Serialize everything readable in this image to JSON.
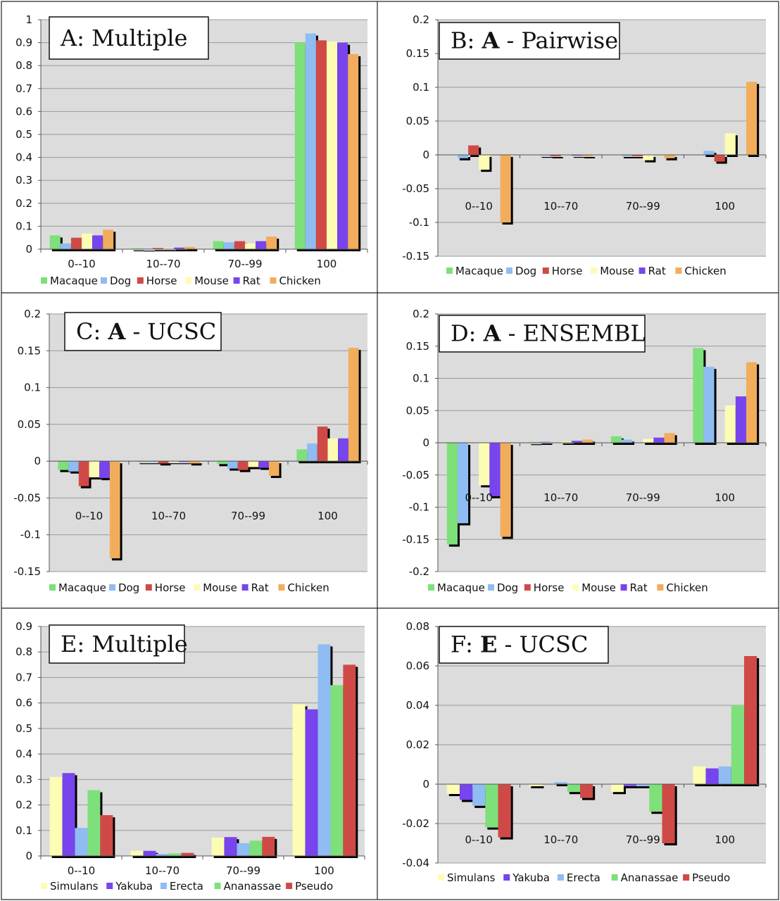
{
  "chart_data": [
    {
      "type": "bar",
      "title_parts": [
        "A: Multiple"
      ],
      "categories": [
        "0--10",
        "10--70",
        "70--99",
        "100"
      ],
      "ylim": [
        0,
        1
      ],
      "yticks": [
        0,
        0.1,
        0.2,
        0.3,
        0.4,
        0.5,
        0.6,
        0.7,
        0.8,
        0.9,
        1
      ],
      "ytick_labels": [
        "0",
        "0.1",
        "0.2",
        "0.3",
        "0.4",
        "0.5",
        "0.6",
        "0.7",
        "0.8",
        "0.9",
        "1"
      ],
      "category_labels_at_bottom": true,
      "grid": true,
      "legend_placement": "bottom",
      "series": [
        {
          "name": "Macaque",
          "color": "#7ee07a",
          "values": [
            0.06,
            0.004,
            0.035,
            0.9
          ]
        },
        {
          "name": "Dog",
          "color": "#8fbcf2",
          "values": [
            0.025,
            0.003,
            0.03,
            0.94
          ]
        },
        {
          "name": "Horse",
          "color": "#cf4a46",
          "values": [
            0.05,
            0.005,
            0.035,
            0.91
          ]
        },
        {
          "name": "Mouse",
          "color": "#fdfcb4",
          "values": [
            0.068,
            0.005,
            0.025,
            0.905
          ]
        },
        {
          "name": "Rat",
          "color": "#7744ee",
          "values": [
            0.06,
            0.007,
            0.035,
            0.9
          ]
        },
        {
          "name": "Chicken",
          "color": "#f2ad5c",
          "values": [
            0.085,
            0.01,
            0.055,
            0.85
          ]
        }
      ]
    },
    {
      "type": "bar",
      "title_parts": [
        "B: ",
        "A",
        " - Pairwise"
      ],
      "categories": [
        "0--10",
        "10--70",
        "70--99",
        "100"
      ],
      "ylim": [
        -0.15,
        0.2
      ],
      "yticks": [
        -0.15,
        -0.1,
        -0.05,
        0,
        0.05,
        0.1,
        0.15,
        0.2
      ],
      "ytick_labels": [
        "-0.15",
        "-0.1",
        "-0.05",
        "0",
        "0.05",
        "0.1",
        "0.15",
        "0.2"
      ],
      "category_labels_at_bottom": false,
      "grid": true,
      "legend_placement": "bottom",
      "series": [
        {
          "name": "Macaque",
          "color": "#7ee07a",
          "values": [
            0,
            0,
            0,
            0
          ]
        },
        {
          "name": "Dog",
          "color": "#8fbcf2",
          "values": [
            -0.005,
            -0.001,
            -0.002,
            0.006
          ]
        },
        {
          "name": "Horse",
          "color": "#cf4a46",
          "values": [
            0.014,
            -0.002,
            -0.002,
            -0.01
          ]
        },
        {
          "name": "Mouse",
          "color": "#fdfcb4",
          "values": [
            -0.022,
            0,
            -0.008,
            0.032
          ]
        },
        {
          "name": "Rat",
          "color": "#7744ee",
          "values": [
            0,
            -0.001,
            0,
            0
          ]
        },
        {
          "name": "Chicken",
          "color": "#f2ad5c",
          "values": [
            -0.1,
            -0.002,
            -0.005,
            0.108
          ]
        }
      ]
    },
    {
      "type": "bar",
      "title_parts": [
        "C: ",
        "A",
        " - UCSC"
      ],
      "categories": [
        "0--10",
        "10--70",
        "70--99",
        "100"
      ],
      "ylim": [
        -0.15,
        0.2
      ],
      "yticks": [
        -0.15,
        -0.1,
        -0.05,
        0,
        0.05,
        0.1,
        0.15,
        0.2
      ],
      "ytick_labels": [
        "-0.15",
        "-0.1",
        "-0.05",
        "0",
        "0.05",
        "0.1",
        "0.15",
        "0.2"
      ],
      "category_labels_at_bottom": false,
      "grid": true,
      "legend_placement": "bottom",
      "series": [
        {
          "name": "Macaque",
          "color": "#7ee07a",
          "values": [
            -0.012,
            -0.001,
            -0.004,
            0.016
          ]
        },
        {
          "name": "Dog",
          "color": "#8fbcf2",
          "values": [
            -0.014,
            -0.001,
            -0.01,
            0.024
          ]
        },
        {
          "name": "Horse",
          "color": "#cf4a46",
          "values": [
            -0.034,
            -0.003,
            -0.012,
            0.047
          ]
        },
        {
          "name": "Mouse",
          "color": "#fdfcb4",
          "values": [
            -0.022,
            -0.001,
            -0.008,
            0.031
          ]
        },
        {
          "name": "Rat",
          "color": "#7744ee",
          "values": [
            -0.023,
            -0.001,
            -0.009,
            0.031
          ]
        },
        {
          "name": "Chicken",
          "color": "#f2ad5c",
          "values": [
            -0.132,
            -0.003,
            -0.02,
            0.154
          ]
        }
      ]
    },
    {
      "type": "bar",
      "title_parts": [
        "D: ",
        "A",
        " - ENSEMBL"
      ],
      "categories": [
        "0--10",
        "10--70",
        "70--99",
        "100"
      ],
      "ylim": [
        -0.2,
        0.2
      ],
      "yticks": [
        -0.2,
        -0.15,
        -0.1,
        -0.05,
        0,
        0.05,
        0.1,
        0.15,
        0.2
      ],
      "ytick_labels": [
        "-0.2",
        "-0.15",
        "-0.1",
        "-0.05",
        "0",
        "0.05",
        "0.1",
        "0.15",
        "0.2"
      ],
      "category_labels_at_bottom": false,
      "grid": true,
      "legend_placement": "bottom",
      "series": [
        {
          "name": "Macaque",
          "color": "#7ee07a",
          "values": [
            -0.158,
            0.001,
            0.01,
            0.147
          ]
        },
        {
          "name": "Dog",
          "color": "#8fbcf2",
          "values": [
            -0.125,
            0.002,
            0.005,
            0.118
          ]
        },
        {
          "name": "Horse",
          "color": "#cf4a46",
          "values": [
            0,
            0,
            0,
            0
          ]
        },
        {
          "name": "Mouse",
          "color": "#fdfcb4",
          "values": [
            -0.066,
            0.002,
            0.006,
            0.058
          ]
        },
        {
          "name": "Rat",
          "color": "#7744ee",
          "values": [
            -0.083,
            0.003,
            0.008,
            0.072
          ]
        },
        {
          "name": "Chicken",
          "color": "#f2ad5c",
          "values": [
            -0.146,
            0.005,
            0.015,
            0.125
          ]
        }
      ]
    },
    {
      "type": "bar",
      "title_parts": [
        "E: Multiple"
      ],
      "categories": [
        "0--10",
        "10--70",
        "70--99",
        "100"
      ],
      "ylim": [
        0,
        0.9
      ],
      "yticks": [
        0,
        0.1,
        0.2,
        0.3,
        0.4,
        0.5,
        0.6,
        0.7,
        0.8,
        0.9
      ],
      "ytick_labels": [
        "0",
        "0.1",
        "0.2",
        "0.3",
        "0.4",
        "0.5",
        "0.6",
        "0.7",
        "0.8",
        "0.9"
      ],
      "category_labels_at_bottom": true,
      "grid": true,
      "legend_placement": "bottom",
      "series": [
        {
          "name": "Simulans",
          "color": "#fdfcb4",
          "values": [
            0.31,
            0.02,
            0.072,
            0.595
          ]
        },
        {
          "name": "Yakuba",
          "color": "#7744ee",
          "values": [
            0.325,
            0.02,
            0.074,
            0.575
          ]
        },
        {
          "name": "Erecta",
          "color": "#8fbcf2",
          "values": [
            0.11,
            0.008,
            0.05,
            0.83
          ]
        },
        {
          "name": "Ananassae",
          "color": "#7ee07a",
          "values": [
            0.258,
            0.01,
            0.06,
            0.67
          ]
        },
        {
          "name": "Pseudo",
          "color": "#cf4a46",
          "values": [
            0.16,
            0.012,
            0.075,
            0.75
          ]
        }
      ]
    },
    {
      "type": "bar",
      "title_parts": [
        "F: ",
        "E",
        " - UCSC"
      ],
      "categories": [
        "0--10",
        "10--70",
        "70--99",
        "100"
      ],
      "ylim": [
        -0.04,
        0.08
      ],
      "yticks": [
        -0.04,
        -0.02,
        0,
        0.02,
        0.04,
        0.06,
        0.08
      ],
      "ytick_labels": [
        "-0.04",
        "-0.02",
        "0",
        "0.02",
        "0.04",
        "0.06",
        "0.08"
      ],
      "category_labels_at_bottom": false,
      "grid": true,
      "legend_placement": "bottom",
      "series": [
        {
          "name": "Simulans",
          "color": "#fdfcb4",
          "values": [
            -0.005,
            -0.001,
            -0.004,
            0.009
          ]
        },
        {
          "name": "Yakuba",
          "color": "#7744ee",
          "values": [
            -0.008,
            0,
            -0.001,
            0.008
          ]
        },
        {
          "name": "Erecta",
          "color": "#8fbcf2",
          "values": [
            -0.011,
            0.001,
            -0.001,
            0.009
          ]
        },
        {
          "name": "Ananassae",
          "color": "#7ee07a",
          "values": [
            -0.022,
            -0.004,
            -0.014,
            0.04
          ]
        },
        {
          "name": "Pseudo",
          "color": "#cf4a46",
          "values": [
            -0.027,
            -0.007,
            -0.03,
            0.065
          ]
        }
      ]
    }
  ]
}
